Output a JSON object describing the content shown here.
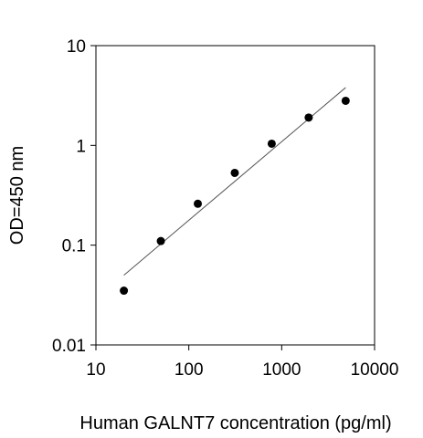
{
  "chart_data": {
    "type": "scatter",
    "title": "",
    "xlabel": "Human GALNT7 concentration (pg/ml)",
    "ylabel": "OD=450 nm",
    "x_scale": "log",
    "y_scale": "log",
    "xlim": [
      10,
      10000
    ],
    "ylim": [
      0.01,
      10
    ],
    "x_ticks": [
      10,
      100,
      1000,
      10000
    ],
    "x_tick_labels": [
      "10",
      "100",
      "1000",
      "10000"
    ],
    "y_ticks": [
      0.01,
      0.1,
      1,
      10
    ],
    "y_tick_labels": [
      "0.01",
      "0.1",
      "1",
      "10"
    ],
    "grid": false,
    "legend": "none",
    "series": [
      {
        "x": [
          20,
          50,
          125,
          312.5,
          781,
          1953,
          4883
        ],
        "y": [
          0.035,
          0.11,
          0.26,
          0.53,
          1.04,
          1.9,
          2.8
        ]
      }
    ],
    "fit_line": {
      "x": [
        20,
        4883
      ],
      "y": [
        0.05,
        3.8
      ]
    },
    "colors": {
      "point": "#000000",
      "line": "#555555",
      "axis": "#000000"
    }
  }
}
